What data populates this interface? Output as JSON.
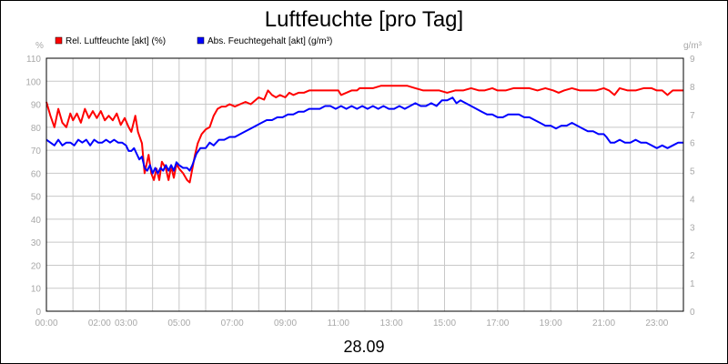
{
  "chart_data": {
    "type": "line",
    "title": "Luftfeuchte [pro Tag]",
    "date_label": "28.09",
    "ylabel_left": "%",
    "ylabel_right": "g/m³",
    "ylim_left": [
      0,
      110
    ],
    "ylim_right": [
      0,
      9
    ],
    "yticks_left": [
      "0",
      "10",
      "20",
      "30",
      "40",
      "50",
      "60",
      "70",
      "80",
      "90",
      "100",
      "110"
    ],
    "yticks_right": [
      "0",
      "1",
      "2",
      "3",
      "4",
      "5",
      "6",
      "7",
      "8",
      "9"
    ],
    "xlim": [
      0,
      24
    ],
    "xticks": [
      {
        "label": "00:00",
        "x": 0
      },
      {
        "label": "02:00",
        "x": 2
      },
      {
        "label": "03:00",
        "x": 3
      },
      {
        "label": "05:00",
        "x": 5
      },
      {
        "label": "07:00",
        "x": 7
      },
      {
        "label": "09:00",
        "x": 9
      },
      {
        "label": "11:00",
        "x": 11
      },
      {
        "label": "13:00",
        "x": 13
      },
      {
        "label": "15:00",
        "x": 15
      },
      {
        "label": "17:00",
        "x": 17
      },
      {
        "label": "19:00",
        "x": 19
      },
      {
        "label": "21:00",
        "x": 21
      },
      {
        "label": "23:00",
        "x": 23
      }
    ],
    "grid": true,
    "legend_position": "top-left",
    "series": [
      {
        "name": "Rel. Luftfeuchte [akt] (%)",
        "axis": "left",
        "color": "#ff0000",
        "points": [
          [
            0.0,
            91
          ],
          [
            0.15,
            85
          ],
          [
            0.3,
            80
          ],
          [
            0.45,
            88
          ],
          [
            0.6,
            82
          ],
          [
            0.75,
            80
          ],
          [
            0.9,
            86
          ],
          [
            1.0,
            83
          ],
          [
            1.15,
            86
          ],
          [
            1.3,
            82
          ],
          [
            1.45,
            88
          ],
          [
            1.6,
            84
          ],
          [
            1.75,
            87
          ],
          [
            1.9,
            84
          ],
          [
            2.05,
            87
          ],
          [
            2.2,
            83
          ],
          [
            2.35,
            85
          ],
          [
            2.5,
            83
          ],
          [
            2.65,
            86
          ],
          [
            2.8,
            81
          ],
          [
            2.95,
            84
          ],
          [
            3.1,
            80
          ],
          [
            3.2,
            78
          ],
          [
            3.35,
            85
          ],
          [
            3.45,
            78
          ],
          [
            3.6,
            73
          ],
          [
            3.7,
            60
          ],
          [
            3.85,
            68
          ],
          [
            3.95,
            60
          ],
          [
            4.05,
            57
          ],
          [
            4.15,
            62
          ],
          [
            4.25,
            57
          ],
          [
            4.35,
            65
          ],
          [
            4.5,
            62
          ],
          [
            4.6,
            57
          ],
          [
            4.7,
            63
          ],
          [
            4.8,
            58
          ],
          [
            4.9,
            64
          ],
          [
            5.0,
            62
          ],
          [
            5.15,
            60
          ],
          [
            5.3,
            57
          ],
          [
            5.4,
            56
          ],
          [
            5.5,
            62
          ],
          [
            5.6,
            68
          ],
          [
            5.7,
            73
          ],
          [
            5.85,
            77
          ],
          [
            6.0,
            79
          ],
          [
            6.15,
            80
          ],
          [
            6.3,
            85
          ],
          [
            6.45,
            88
          ],
          [
            6.6,
            89
          ],
          [
            6.75,
            89
          ],
          [
            6.9,
            90
          ],
          [
            7.1,
            89
          ],
          [
            7.3,
            90
          ],
          [
            7.5,
            91
          ],
          [
            7.7,
            90
          ],
          [
            7.9,
            92
          ],
          [
            8.0,
            93
          ],
          [
            8.2,
            92
          ],
          [
            8.35,
            96
          ],
          [
            8.5,
            94
          ],
          [
            8.65,
            93
          ],
          [
            8.8,
            94
          ],
          [
            9.0,
            93
          ],
          [
            9.15,
            95
          ],
          [
            9.3,
            94
          ],
          [
            9.5,
            95
          ],
          [
            9.7,
            95
          ],
          [
            9.9,
            96
          ],
          [
            10.2,
            96
          ],
          [
            10.5,
            96
          ],
          [
            10.8,
            96
          ],
          [
            11.0,
            96
          ],
          [
            11.1,
            94
          ],
          [
            11.3,
            95
          ],
          [
            11.5,
            96
          ],
          [
            11.7,
            96
          ],
          [
            11.8,
            97
          ],
          [
            12.0,
            97
          ],
          [
            12.3,
            97
          ],
          [
            12.6,
            98
          ],
          [
            13.0,
            98
          ],
          [
            13.3,
            98
          ],
          [
            13.6,
            98
          ],
          [
            13.9,
            97
          ],
          [
            14.2,
            96
          ],
          [
            14.5,
            96
          ],
          [
            14.8,
            96
          ],
          [
            15.1,
            95
          ],
          [
            15.4,
            96
          ],
          [
            15.7,
            96
          ],
          [
            16.0,
            97
          ],
          [
            16.3,
            96
          ],
          [
            16.5,
            96
          ],
          [
            16.8,
            97
          ],
          [
            17.0,
            96
          ],
          [
            17.3,
            96
          ],
          [
            17.6,
            97
          ],
          [
            17.9,
            97
          ],
          [
            18.2,
            97
          ],
          [
            18.5,
            96
          ],
          [
            18.8,
            97
          ],
          [
            19.1,
            96
          ],
          [
            19.3,
            95
          ],
          [
            19.5,
            96
          ],
          [
            19.8,
            97
          ],
          [
            20.1,
            96
          ],
          [
            20.4,
            96
          ],
          [
            20.7,
            96
          ],
          [
            21.0,
            97
          ],
          [
            21.2,
            96
          ],
          [
            21.4,
            94
          ],
          [
            21.6,
            97
          ],
          [
            21.9,
            96
          ],
          [
            22.2,
            96
          ],
          [
            22.5,
            97
          ],
          [
            22.8,
            97
          ],
          [
            23.0,
            96
          ],
          [
            23.2,
            96
          ],
          [
            23.4,
            94
          ],
          [
            23.6,
            96
          ],
          [
            23.8,
            96
          ],
          [
            24.0,
            96
          ]
        ]
      },
      {
        "name": "Abs. Feuchtegehalt [akt] (g/m³)",
        "axis": "right",
        "color": "#0000ff",
        "points": [
          [
            0.0,
            6.1
          ],
          [
            0.15,
            6.0
          ],
          [
            0.3,
            5.9
          ],
          [
            0.45,
            6.1
          ],
          [
            0.6,
            5.9
          ],
          [
            0.75,
            6.0
          ],
          [
            0.9,
            6.0
          ],
          [
            1.05,
            5.9
          ],
          [
            1.2,
            6.1
          ],
          [
            1.35,
            6.0
          ],
          [
            1.5,
            6.1
          ],
          [
            1.65,
            5.9
          ],
          [
            1.8,
            6.1
          ],
          [
            1.95,
            6.0
          ],
          [
            2.1,
            6.0
          ],
          [
            2.25,
            6.1
          ],
          [
            2.4,
            6.0
          ],
          [
            2.55,
            6.1
          ],
          [
            2.7,
            6.0
          ],
          [
            2.85,
            6.0
          ],
          [
            3.0,
            5.9
          ],
          [
            3.1,
            5.7
          ],
          [
            3.2,
            5.7
          ],
          [
            3.3,
            5.8
          ],
          [
            3.4,
            5.6
          ],
          [
            3.5,
            5.4
          ],
          [
            3.6,
            5.5
          ],
          [
            3.7,
            5.1
          ],
          [
            3.8,
            5.0
          ],
          [
            3.9,
            5.2
          ],
          [
            4.0,
            4.9
          ],
          [
            4.1,
            5.1
          ],
          [
            4.2,
            4.9
          ],
          [
            4.3,
            5.1
          ],
          [
            4.4,
            5.0
          ],
          [
            4.5,
            5.2
          ],
          [
            4.6,
            5.0
          ],
          [
            4.7,
            5.2
          ],
          [
            4.8,
            5.0
          ],
          [
            4.9,
            5.3
          ],
          [
            5.0,
            5.2
          ],
          [
            5.15,
            5.1
          ],
          [
            5.3,
            5.1
          ],
          [
            5.4,
            5.0
          ],
          [
            5.5,
            5.2
          ],
          [
            5.65,
            5.6
          ],
          [
            5.8,
            5.8
          ],
          [
            6.0,
            5.8
          ],
          [
            6.15,
            6.0
          ],
          [
            6.3,
            5.9
          ],
          [
            6.5,
            6.1
          ],
          [
            6.7,
            6.1
          ],
          [
            6.9,
            6.2
          ],
          [
            7.1,
            6.2
          ],
          [
            7.3,
            6.3
          ],
          [
            7.5,
            6.4
          ],
          [
            7.7,
            6.5
          ],
          [
            7.9,
            6.6
          ],
          [
            8.1,
            6.7
          ],
          [
            8.3,
            6.8
          ],
          [
            8.5,
            6.8
          ],
          [
            8.7,
            6.9
          ],
          [
            8.9,
            6.9
          ],
          [
            9.1,
            7.0
          ],
          [
            9.3,
            7.0
          ],
          [
            9.5,
            7.1
          ],
          [
            9.7,
            7.1
          ],
          [
            9.9,
            7.2
          ],
          [
            10.1,
            7.2
          ],
          [
            10.3,
            7.2
          ],
          [
            10.5,
            7.3
          ],
          [
            10.7,
            7.3
          ],
          [
            10.9,
            7.2
          ],
          [
            11.1,
            7.3
          ],
          [
            11.3,
            7.2
          ],
          [
            11.5,
            7.3
          ],
          [
            11.7,
            7.2
          ],
          [
            11.9,
            7.3
          ],
          [
            12.1,
            7.2
          ],
          [
            12.3,
            7.3
          ],
          [
            12.5,
            7.2
          ],
          [
            12.7,
            7.3
          ],
          [
            12.9,
            7.2
          ],
          [
            13.1,
            7.2
          ],
          [
            13.3,
            7.3
          ],
          [
            13.5,
            7.2
          ],
          [
            13.7,
            7.3
          ],
          [
            13.9,
            7.4
          ],
          [
            14.1,
            7.3
          ],
          [
            14.3,
            7.3
          ],
          [
            14.5,
            7.4
          ],
          [
            14.7,
            7.3
          ],
          [
            14.9,
            7.5
          ],
          [
            15.1,
            7.5
          ],
          [
            15.3,
            7.6
          ],
          [
            15.45,
            7.4
          ],
          [
            15.6,
            7.5
          ],
          [
            15.8,
            7.4
          ],
          [
            16.0,
            7.3
          ],
          [
            16.2,
            7.2
          ],
          [
            16.4,
            7.1
          ],
          [
            16.6,
            7.0
          ],
          [
            16.8,
            7.0
          ],
          [
            17.0,
            6.9
          ],
          [
            17.2,
            6.9
          ],
          [
            17.4,
            7.0
          ],
          [
            17.6,
            7.0
          ],
          [
            17.8,
            7.0
          ],
          [
            18.0,
            6.9
          ],
          [
            18.2,
            6.9
          ],
          [
            18.4,
            6.8
          ],
          [
            18.6,
            6.7
          ],
          [
            18.8,
            6.6
          ],
          [
            19.0,
            6.6
          ],
          [
            19.2,
            6.5
          ],
          [
            19.4,
            6.6
          ],
          [
            19.6,
            6.6
          ],
          [
            19.8,
            6.7
          ],
          [
            20.0,
            6.6
          ],
          [
            20.2,
            6.5
          ],
          [
            20.4,
            6.4
          ],
          [
            20.6,
            6.4
          ],
          [
            20.8,
            6.3
          ],
          [
            21.0,
            6.3
          ],
          [
            21.1,
            6.2
          ],
          [
            21.25,
            6.0
          ],
          [
            21.4,
            6.0
          ],
          [
            21.6,
            6.1
          ],
          [
            21.8,
            6.0
          ],
          [
            22.0,
            6.0
          ],
          [
            22.2,
            6.1
          ],
          [
            22.4,
            6.0
          ],
          [
            22.6,
            6.0
          ],
          [
            22.8,
            5.9
          ],
          [
            23.0,
            5.8
          ],
          [
            23.2,
            5.9
          ],
          [
            23.4,
            5.8
          ],
          [
            23.6,
            5.9
          ],
          [
            23.8,
            6.0
          ],
          [
            24.0,
            6.0
          ]
        ]
      }
    ]
  }
}
